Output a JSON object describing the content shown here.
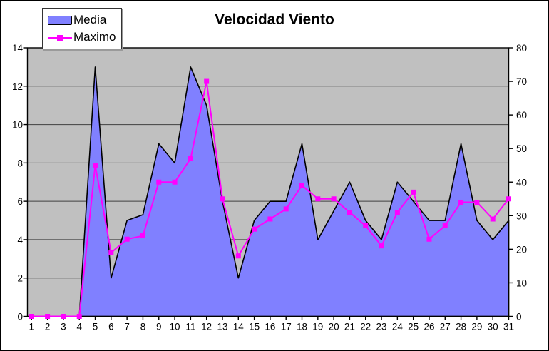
{
  "title": "Velocidad Viento",
  "legend": {
    "items": [
      {
        "label": "Media",
        "swatch": "area-swatch-icon"
      },
      {
        "label": "Maximo",
        "swatch": "line-marker-swatch-icon"
      }
    ]
  },
  "colors": {
    "plot_background": "#C0C0C0",
    "media_fill": "#8080FF",
    "media_outline": "#000000",
    "maximo_line": "#FF00FF",
    "gridline": "#404040",
    "axis": "#000000",
    "text": "#000000",
    "page_background": "#FFFFFF"
  },
  "chart_data": {
    "type": "area+line",
    "title": "Velocidad Viento",
    "x": [
      1,
      2,
      3,
      4,
      5,
      6,
      7,
      8,
      9,
      10,
      11,
      12,
      13,
      14,
      15,
      16,
      17,
      18,
      19,
      20,
      21,
      22,
      23,
      24,
      25,
      26,
      27,
      28,
      29,
      30,
      31
    ],
    "series": [
      {
        "name": "Media",
        "type": "area",
        "axis": "left",
        "color": "#8080FF",
        "values": [
          0,
          0,
          0,
          0,
          13,
          2,
          5,
          5.3,
          9,
          8,
          13,
          11,
          6,
          2,
          5,
          6,
          6,
          9,
          4,
          5.5,
          7,
          5,
          4,
          7,
          6,
          5,
          5,
          9,
          5,
          4,
          5
        ]
      },
      {
        "name": "Maximo",
        "type": "line",
        "axis": "right",
        "color": "#FF00FF",
        "values": [
          0,
          0,
          0,
          0,
          45,
          19,
          23,
          24,
          40,
          40,
          47,
          70,
          35,
          18,
          26,
          29,
          32,
          39,
          35,
          35,
          31,
          27,
          21,
          31,
          37,
          23,
          27,
          34,
          34,
          29,
          35
        ]
      }
    ],
    "left_axis": {
      "min": 0,
      "max": 14,
      "ticks": [
        0,
        2,
        4,
        6,
        8,
        10,
        12,
        14
      ]
    },
    "right_axis": {
      "min": 0,
      "max": 80,
      "ticks": [
        0,
        10,
        20,
        30,
        40,
        50,
        60,
        70,
        80
      ]
    },
    "x_axis": {
      "ticks": [
        1,
        2,
        3,
        4,
        5,
        6,
        7,
        8,
        9,
        10,
        11,
        12,
        13,
        14,
        15,
        16,
        17,
        18,
        19,
        20,
        21,
        22,
        23,
        24,
        25,
        26,
        27,
        28,
        29,
        30,
        31
      ]
    },
    "grid": "horizontal",
    "legend_position": "top-left"
  }
}
